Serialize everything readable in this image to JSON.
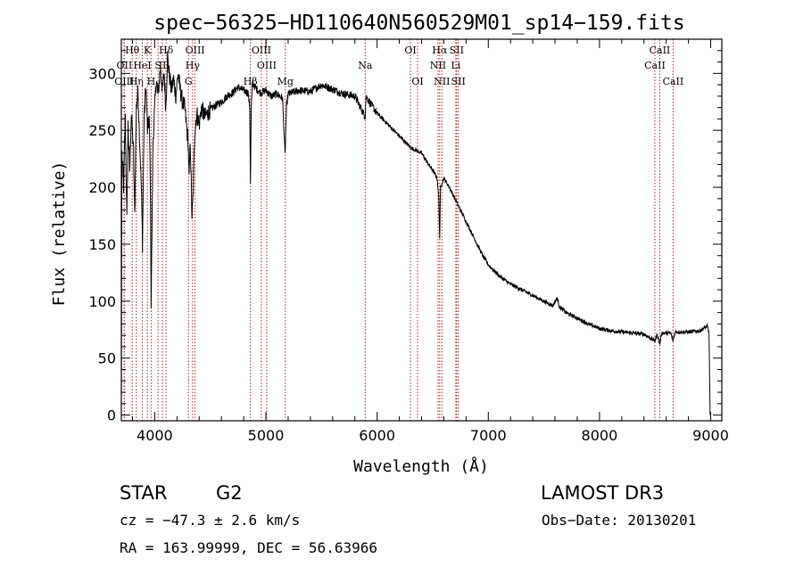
{
  "chart_data": {
    "type": "line",
    "title": "spec−56325−HD110640N560529M01_sp14−159.fits",
    "xlabel": "Wavelength (Å)",
    "ylabel": "Flux (relative)",
    "xlim": [
      3700,
      9100
    ],
    "ylim": [
      -5,
      330
    ],
    "xticks": [
      4000,
      5000,
      6000,
      7000,
      8000,
      9000
    ],
    "yticks": [
      0,
      50,
      100,
      150,
      200,
      250,
      300
    ],
    "grid": false,
    "series": [
      {
        "name": "flux",
        "color": "#000000",
        "points": [
          [
            3700,
            0
          ],
          [
            3705,
            230
          ],
          [
            3720,
            200
          ],
          [
            3735,
            260
          ],
          [
            3750,
            170
          ],
          [
            3760,
            255
          ],
          [
            3775,
            215
          ],
          [
            3790,
            265
          ],
          [
            3810,
            230
          ],
          [
            3820,
            175
          ],
          [
            3835,
            270
          ],
          [
            3850,
            285
          ],
          [
            3865,
            240
          ],
          [
            3880,
            200
          ],
          [
            3890,
            150
          ],
          [
            3905,
            260
          ],
          [
            3920,
            290
          ],
          [
            3935,
            250
          ],
          [
            3950,
            260
          ],
          [
            3960,
            215
          ],
          [
            3968,
            98
          ],
          [
            3975,
            160
          ],
          [
            3985,
            240
          ],
          [
            4000,
            270
          ],
          [
            4015,
            295
          ],
          [
            4030,
            280
          ],
          [
            4050,
            305
          ],
          [
            4070,
            285
          ],
          [
            4085,
            300
          ],
          [
            4100,
            270
          ],
          [
            4115,
            315
          ],
          [
            4130,
            300
          ],
          [
            4150,
            285
          ],
          [
            4170,
            295
          ],
          [
            4190,
            280
          ],
          [
            4210,
            300
          ],
          [
            4230,
            285
          ],
          [
            4250,
            275
          ],
          [
            4270,
            270
          ],
          [
            4290,
            250
          ],
          [
            4300,
            240
          ],
          [
            4310,
            208
          ],
          [
            4320,
            240
          ],
          [
            4335,
            175
          ],
          [
            4345,
            190
          ],
          [
            4360,
            250
          ],
          [
            4380,
            265
          ],
          [
            4400,
            255
          ],
          [
            4420,
            270
          ],
          [
            4450,
            262
          ],
          [
            4500,
            268
          ],
          [
            4550,
            272
          ],
          [
            4600,
            275
          ],
          [
            4650,
            280
          ],
          [
            4700,
            283
          ],
          [
            4750,
            288
          ],
          [
            4800,
            285
          ],
          [
            4840,
            283
          ],
          [
            4855,
            270
          ],
          [
            4861,
            205
          ],
          [
            4868,
            270
          ],
          [
            4880,
            292
          ],
          [
            4900,
            288
          ],
          [
            4950,
            283
          ],
          [
            5000,
            285
          ],
          [
            5050,
            280
          ],
          [
            5100,
            282
          ],
          [
            5150,
            278
          ],
          [
            5172,
            228
          ],
          [
            5185,
            270
          ],
          [
            5200,
            282
          ],
          [
            5300,
            285
          ],
          [
            5400,
            284
          ],
          [
            5500,
            290
          ],
          [
            5600,
            286
          ],
          [
            5700,
            282
          ],
          [
            5800,
            280
          ],
          [
            5893,
            262
          ],
          [
            5900,
            280
          ],
          [
            5950,
            272
          ],
          [
            6000,
            265
          ],
          [
            6100,
            255
          ],
          [
            6200,
            245
          ],
          [
            6300,
            235
          ],
          [
            6400,
            230
          ],
          [
            6450,
            222
          ],
          [
            6500,
            215
          ],
          [
            6540,
            208
          ],
          [
            6555,
            190
          ],
          [
            6563,
            155
          ],
          [
            6570,
            200
          ],
          [
            6600,
            208
          ],
          [
            6650,
            200
          ],
          [
            6700,
            190
          ],
          [
            6750,
            180
          ],
          [
            6800,
            170
          ],
          [
            6850,
            160
          ],
          [
            6900,
            150
          ],
          [
            6950,
            140
          ],
          [
            7000,
            132
          ],
          [
            7100,
            122
          ],
          [
            7200,
            115
          ],
          [
            7300,
            110
          ],
          [
            7400,
            105
          ],
          [
            7500,
            100
          ],
          [
            7580,
            96
          ],
          [
            7620,
            103
          ],
          [
            7640,
            95
          ],
          [
            7700,
            90
          ],
          [
            7800,
            85
          ],
          [
            7900,
            80
          ],
          [
            8000,
            76
          ],
          [
            8100,
            74
          ],
          [
            8200,
            73
          ],
          [
            8300,
            72
          ],
          [
            8400,
            71
          ],
          [
            8498,
            65
          ],
          [
            8520,
            71
          ],
          [
            8542,
            62
          ],
          [
            8560,
            72
          ],
          [
            8640,
            72
          ],
          [
            8662,
            65
          ],
          [
            8680,
            73
          ],
          [
            8800,
            73
          ],
          [
            8900,
            74
          ],
          [
            8970,
            78
          ],
          [
            8985,
            72
          ],
          [
            8995,
            0
          ]
        ]
      }
    ],
    "lines": [
      {
        "label": "Hθ",
        "wavelength": 3798,
        "tier": 0
      },
      {
        "label": "OII",
        "wavelength": 3727,
        "tier": 1
      },
      {
        "label": "OIII",
        "wavelength": 3726,
        "tier": 2
      },
      {
        "label": "Hη",
        "wavelength": 3835,
        "tier": 2
      },
      {
        "label": "HeI",
        "wavelength": 3889,
        "tier": 1
      },
      {
        "label": "K",
        "wavelength": 3934,
        "tier": 0
      },
      {
        "label": "H",
        "wavelength": 3968,
        "tier": 2
      },
      {
        "label": "S",
        "wavelength": 4030,
        "tier": 1
      },
      {
        "label": "Hδ",
        "wavelength": 4102,
        "tier": 0
      },
      {
        "label": "II",
        "wavelength": 4070,
        "tier": 1
      },
      {
        "label": "OIII",
        "wavelength": 4363,
        "tier": 0
      },
      {
        "label": "Hγ",
        "wavelength": 4341,
        "tier": 1
      },
      {
        "label": "G",
        "wavelength": 4304,
        "tier": 2
      },
      {
        "label": "Hβ",
        "wavelength": 4861,
        "tier": 2
      },
      {
        "label": "OIII",
        "wavelength": 4959,
        "tier": 0
      },
      {
        "label": "OIII",
        "wavelength": 5007,
        "tier": 1
      },
      {
        "label": "Mg",
        "wavelength": 5175,
        "tier": 2
      },
      {
        "label": "Na",
        "wavelength": 5893,
        "tier": 1
      },
      {
        "label": "OI",
        "wavelength": 6300,
        "tier": 0
      },
      {
        "label": "OI",
        "wavelength": 6364,
        "tier": 2
      },
      {
        "label": "Hα",
        "wavelength": 6563,
        "tier": 0
      },
      {
        "label": "NII",
        "wavelength": 6548,
        "tier": 1
      },
      {
        "label": "NII",
        "wavelength": 6583,
        "tier": 2
      },
      {
        "label": "SII",
        "wavelength": 6716,
        "tier": 0
      },
      {
        "label": "Li",
        "wavelength": 6708,
        "tier": 1
      },
      {
        "label": "SII",
        "wavelength": 6731,
        "tier": 2
      },
      {
        "label": "CaII",
        "wavelength": 8542,
        "tier": 0
      },
      {
        "label": "CaII",
        "wavelength": 8498,
        "tier": 1
      },
      {
        "label": "CaII",
        "wavelength": 8662,
        "tier": 2
      }
    ],
    "colors": {
      "spectrum": "#000000",
      "lines": "#b22222",
      "axes": "#000000"
    }
  },
  "info": {
    "object_class": "STAR",
    "subclass": "G2",
    "survey": "LAMOST DR3",
    "cz": "cz = −47.3 ± 2.6 km/s",
    "obs_date": "Obs−Date: 20130201",
    "coords": "RA = 163.99999, DEC =  56.63966"
  }
}
